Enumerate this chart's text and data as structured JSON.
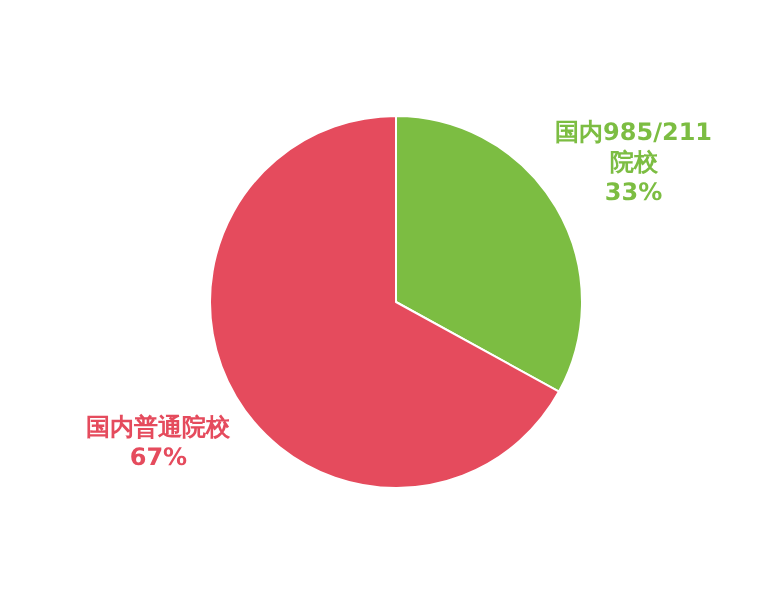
{
  "chart_data": {
    "type": "pie",
    "categories": [
      "国内985/211院校",
      "国内普通院校"
    ],
    "values": [
      33,
      67
    ],
    "colors": [
      "#7cbd42",
      "#e54b5d"
    ],
    "value_labels": [
      "33%",
      "67%"
    ]
  }
}
